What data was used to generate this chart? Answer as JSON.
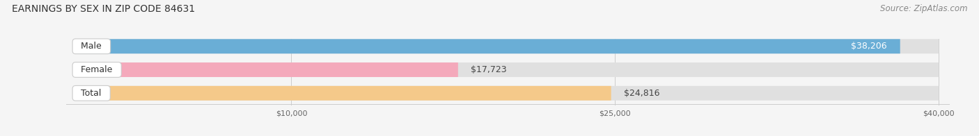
{
  "title": "EARNINGS BY SEX IN ZIP CODE 84631",
  "source": "Source: ZipAtlas.com",
  "categories": [
    "Male",
    "Female",
    "Total"
  ],
  "values": [
    38206,
    17723,
    24816
  ],
  "bar_colors": [
    "#6aaed6",
    "#f4a9bb",
    "#f5c98a"
  ],
  "bar_bg_color": "#e0e0e0",
  "xlim_data": [
    0,
    40000
  ],
  "xticks": [
    10000,
    25000,
    40000
  ],
  "xtick_labels": [
    "$10,000",
    "$25,000",
    "$40,000"
  ],
  "value_labels": [
    "$38,206",
    "$17,723",
    "$24,816"
  ],
  "value_inside": [
    true,
    false,
    false
  ],
  "title_fontsize": 10,
  "source_fontsize": 8.5,
  "bar_label_fontsize": 9,
  "value_fontsize": 9,
  "figsize": [
    14.06,
    1.96
  ],
  "dpi": 100
}
